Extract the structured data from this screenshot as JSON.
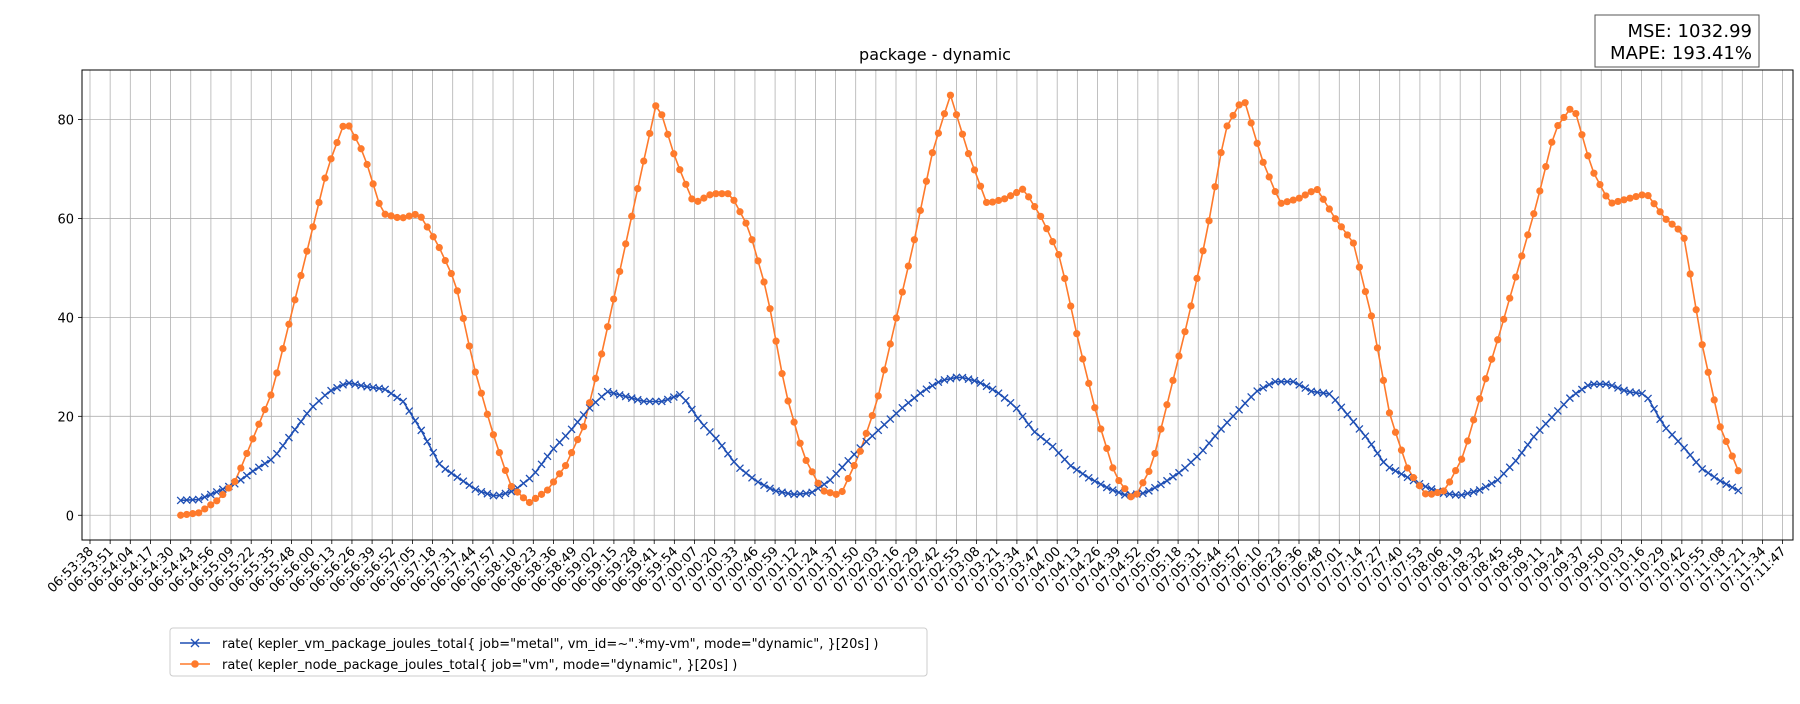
{
  "chart_data": {
    "type": "line",
    "title": "package - dynamic",
    "xlabel": "",
    "ylabel": "",
    "ylim": [
      -5,
      90
    ],
    "yticks": [
      0,
      20,
      40,
      60,
      80
    ],
    "grid": true,
    "legend_position": "lower-left (below axes)",
    "metrics_box": {
      "mse": "MSE: 1032.99",
      "mape": "MAPE: 193.41%",
      "position": "top-right"
    },
    "xtick_labels": [
      "06:53:38",
      "06:53:51",
      "06:54:04",
      "06:54:17",
      "06:54:30",
      "06:54:43",
      "06:54:56",
      "06:55:09",
      "06:55:22",
      "06:55:35",
      "06:55:48",
      "06:56:00",
      "06:56:13",
      "06:56:26",
      "06:56:39",
      "06:56:52",
      "06:57:05",
      "06:57:18",
      "06:57:31",
      "06:57:44",
      "06:57:57",
      "06:58:10",
      "06:58:23",
      "06:58:36",
      "06:58:49",
      "06:59:02",
      "06:59:15",
      "06:59:28",
      "06:59:41",
      "06:59:54",
      "07:00:07",
      "07:00:20",
      "07:00:33",
      "07:00:46",
      "07:00:59",
      "07:01:12",
      "07:01:24",
      "07:01:37",
      "07:01:50",
      "07:02:03",
      "07:02:16",
      "07:02:29",
      "07:02:42",
      "07:02:55",
      "07:03:08",
      "07:03:21",
      "07:03:34",
      "07:03:47",
      "07:04:00",
      "07:04:13",
      "07:04:26",
      "07:04:39",
      "07:04:52",
      "07:05:05",
      "07:05:18",
      "07:05:31",
      "07:05:44",
      "07:05:57",
      "07:06:10",
      "07:06:23",
      "07:06:36",
      "07:06:48",
      "07:07:01",
      "07:07:14",
      "07:07:27",
      "07:07:40",
      "07:07:53",
      "07:08:06",
      "07:08:19",
      "07:08:32",
      "07:08:45",
      "07:08:58",
      "07:09:11",
      "07:09:24",
      "07:09:37",
      "07:09:50",
      "07:10:03",
      "07:10:16",
      "07:10:29",
      "07:10:42",
      "07:10:55",
      "07:11:08",
      "07:11:21",
      "07:11:34",
      "07:11:47"
    ],
    "series": [
      {
        "name": "rate( kepler_vm_package_joules_total{ job=\"metal\", vm_id=~\".*my-vm\", mode=\"dynamic\", }[20s] )",
        "color": "#1f4fb4",
        "marker": "x",
        "start_index": 4.5,
        "end_index": 81.8,
        "knots": [
          3,
          3.2,
          4.8,
          6.5,
          9.2,
          11.5,
          16.5,
          21.5,
          25,
          26.8,
          26,
          25.5,
          23,
          17,
          10,
          7.5,
          5,
          3.8,
          5,
          8,
          13,
          17,
          21.5,
          25,
          24,
          23,
          23,
          24.5,
          19,
          15,
          10,
          7,
          5,
          4.2,
          4.5,
          7,
          11,
          15,
          18.5,
          22,
          25,
          27.2,
          28,
          27,
          25,
          22,
          17,
          14,
          10,
          7.5,
          5.5,
          4,
          4.5,
          6.5,
          9,
          12.5,
          17,
          21,
          25,
          27,
          27,
          25,
          24.5,
          20,
          15.5,
          10,
          8,
          6,
          4.5,
          4,
          5,
          7,
          11,
          16,
          20,
          24,
          26.5,
          26.5,
          25,
          24.5,
          18,
          14,
          9.5,
          7,
          5
        ]
      },
      {
        "name": "rate( kepler_node_package_joules_total{ job=\"vm\", mode=\"dynamic\", }[20s] )",
        "color": "#fe7a2c",
        "marker": "o",
        "start_index": 4.5,
        "end_index": 81.8,
        "knots": [
          0,
          0.5,
          3,
          7,
          16,
          25,
          40,
          55,
          70,
          80,
          73,
          61,
          60,
          61,
          55,
          47,
          30,
          17,
          6,
          2.5,
          5,
          10,
          18,
          33,
          50,
          67,
          84,
          72,
          63,
          65,
          65,
          58,
          45,
          25,
          12,
          5,
          4,
          12,
          23,
          39,
          55,
          73,
          85,
          73,
          63,
          64,
          66,
          60,
          52,
          35,
          20,
          8,
          3,
          10,
          25,
          40,
          57,
          78,
          84.5,
          72,
          63,
          64,
          66,
          60,
          55,
          40,
          20,
          9,
          4,
          5,
          12,
          25,
          37,
          50,
          63,
          78,
          83,
          70,
          63,
          64,
          65,
          60,
          57,
          35,
          18,
          9
        ]
      }
    ]
  }
}
